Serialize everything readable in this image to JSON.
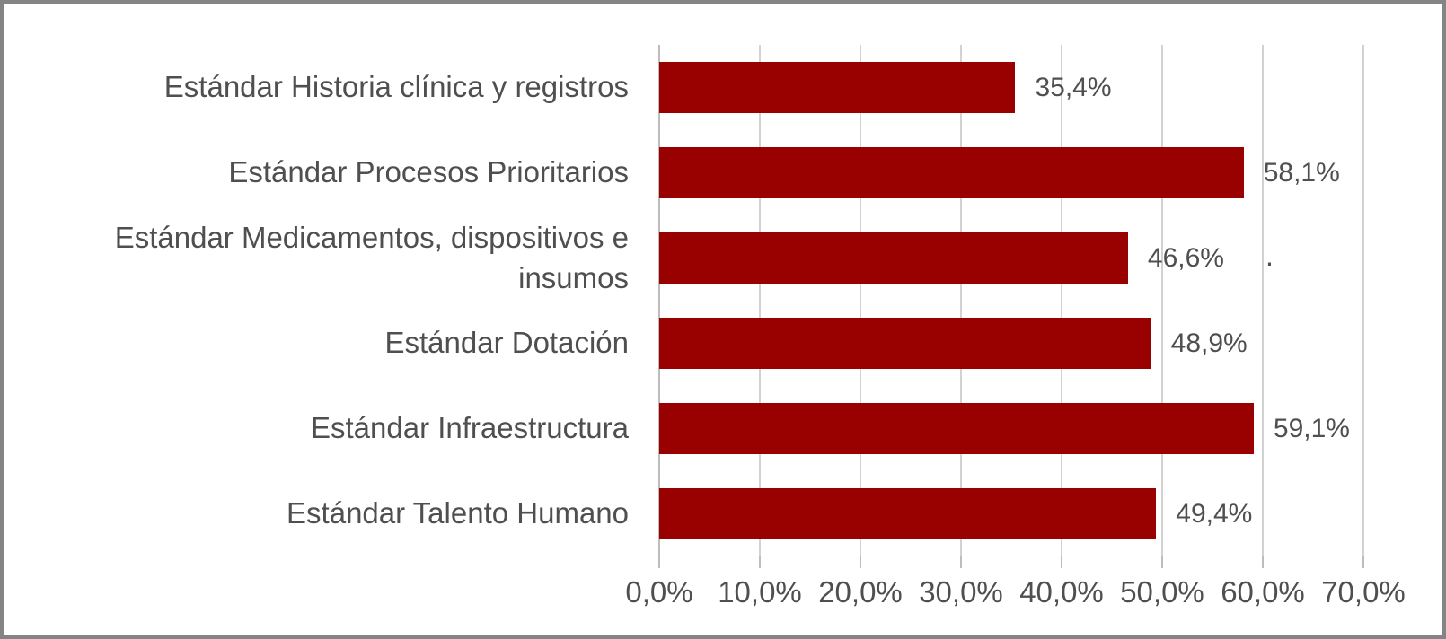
{
  "chart_data": {
    "type": "bar",
    "orientation": "horizontal",
    "title": "",
    "xlabel": "",
    "ylabel": "",
    "categories": [
      "Estándar Historia clínica y registros",
      "Estándar Procesos Prioritarios",
      "Estándar Medicamentos, dispositivos e insumos",
      "Estándar Dotación",
      "Estándar Infraestructura",
      "Estándar Talento Humano"
    ],
    "values": [
      35.4,
      58.1,
      46.6,
      48.9,
      59.1,
      49.4
    ],
    "value_labels": [
      "35,4%",
      "58,1%",
      "46,6%",
      "48,9%",
      "59,1%",
      "49,4%"
    ],
    "xlim": [
      0,
      70
    ],
    "x_ticks": [
      0,
      10,
      20,
      30,
      40,
      50,
      60,
      70
    ],
    "x_tick_labels": [
      "0,0%",
      "10,0%",
      "20,0%",
      "30,0%",
      "40,0%",
      "50,0%",
      "60,0%",
      "70,0%"
    ],
    "grid": "vertical",
    "legend": "none",
    "annotation_dot": ".",
    "colors": {
      "bar": "#990000",
      "gridline": "#d2d2d2",
      "axis_line": "#bdbdbd",
      "text": "#4f4f4f",
      "frame_border": "#848484",
      "background": "#ffffff"
    }
  }
}
